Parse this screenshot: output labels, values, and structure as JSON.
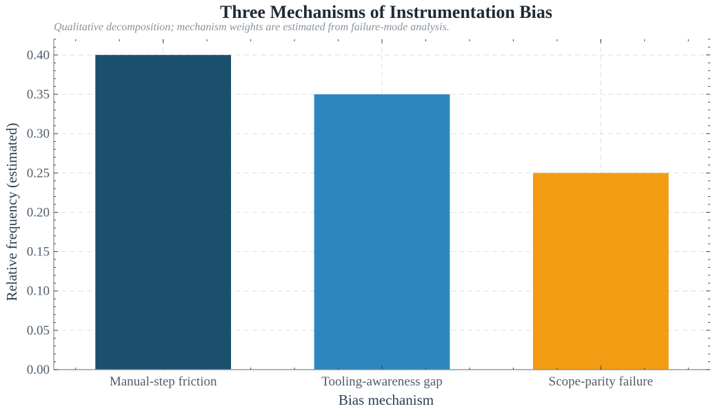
{
  "chart_data": {
    "type": "bar",
    "title": "Three Mechanisms of Instrumentation Bias",
    "subtitle": "Qualitative decomposition; mechanism weights are estimated from failure-mode analysis.",
    "xlabel": "Bias mechanism",
    "ylabel": "Relative frequency (estimated)",
    "categories": [
      "Manual-step friction",
      "Tooling-awareness gap",
      "Scope-parity failure"
    ],
    "values": [
      0.4,
      0.35,
      0.25
    ],
    "colors": [
      "#1b4f6e",
      "#2e86c1",
      "#f39c12"
    ],
    "ylim": [
      0,
      0.42
    ],
    "yticks": [
      "0.00",
      "0.05",
      "0.10",
      "0.15",
      "0.20",
      "0.25",
      "0.30",
      "0.35",
      "0.40"
    ],
    "grid": true,
    "legend": "none"
  }
}
